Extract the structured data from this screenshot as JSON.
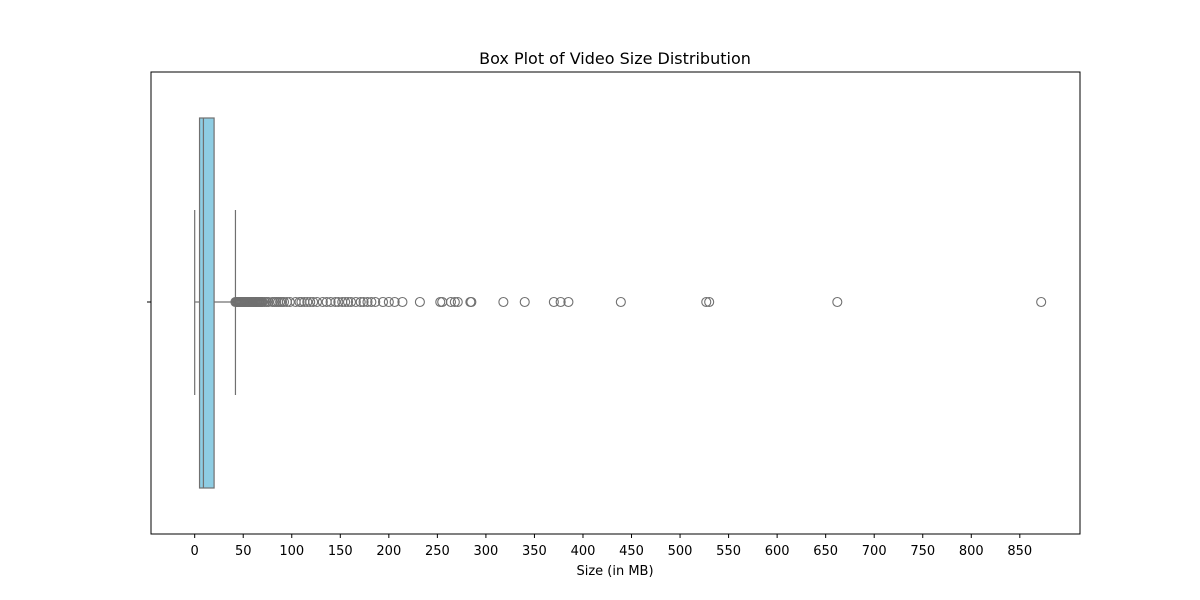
{
  "chart_data": {
    "type": "box",
    "title": "Box Plot of Video Size Distribution",
    "xlabel": "Size (in MB)",
    "ylabel": "",
    "orientation": "horizontal",
    "xlim": [
      -45,
      912
    ],
    "xticks": [
      0,
      50,
      100,
      150,
      200,
      250,
      300,
      350,
      400,
      450,
      500,
      550,
      600,
      650,
      700,
      750,
      800,
      850
    ],
    "grid": false,
    "box": {
      "whisker_low": 0,
      "q1": 5,
      "median": 9,
      "q3": 20,
      "whisker_high": 42
    },
    "outliers": [
      42,
      43,
      44,
      45,
      46,
      47,
      48,
      49,
      50,
      51,
      52,
      53,
      54,
      55,
      56,
      57,
      58,
      59,
      60,
      61,
      62,
      63,
      64,
      65,
      66,
      67,
      68,
      69,
      70,
      72,
      74,
      76,
      80,
      82,
      84,
      86,
      88,
      90,
      92,
      95,
      98,
      104,
      108,
      110,
      113,
      116,
      119,
      122,
      126,
      132,
      136,
      140,
      145,
      148,
      152,
      155,
      158,
      161,
      166,
      171,
      174,
      178,
      182,
      186,
      194,
      200,
      206,
      214,
      232,
      253,
      255,
      264,
      268,
      271,
      284,
      285,
      318,
      340,
      370,
      377,
      385,
      439,
      527,
      530,
      662,
      872
    ],
    "colors": {
      "box_fill": "#8ecde3",
      "box_edge": "#707070",
      "outlier_edge": "#707070"
    }
  }
}
